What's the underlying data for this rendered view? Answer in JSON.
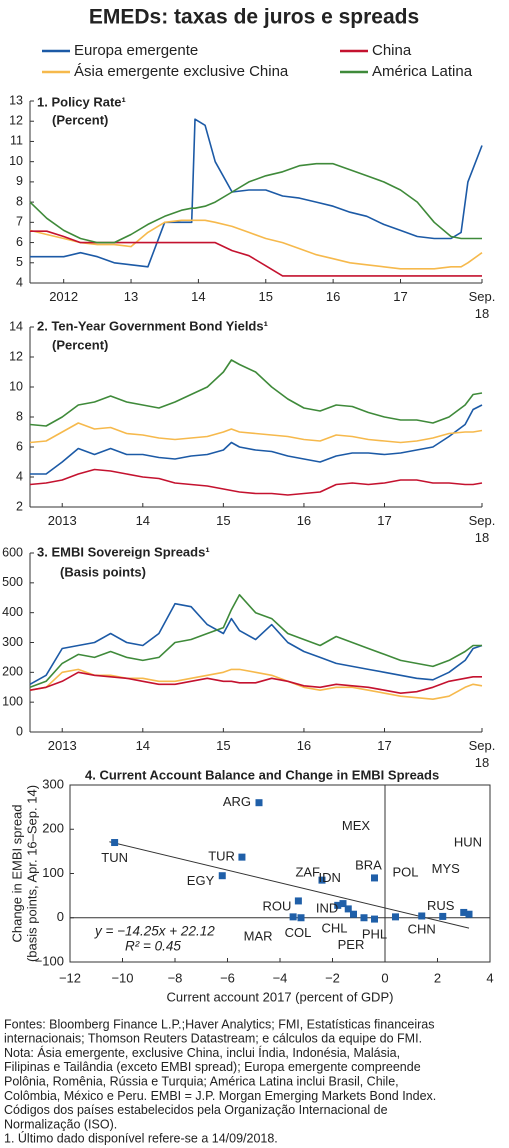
{
  "title": "EMEDs: taxas de juros e spreads",
  "chart_data": [
    {
      "type": "line",
      "title": "1. Policy Rate¹",
      "subtitle": "(Percent)",
      "x": [
        2012.0,
        2012.25,
        2012.5,
        2012.75,
        2013.0,
        2013.25,
        2013.5,
        2013.75,
        2014.0,
        2014.25,
        2014.4,
        2014.45,
        2014.6,
        2014.75,
        2015.0,
        2015.25,
        2015.5,
        2015.75,
        2016.0,
        2016.25,
        2016.5,
        2016.75,
        2017.0,
        2017.25,
        2017.5,
        2017.75,
        2018.0,
        2018.25,
        2018.4,
        2018.5,
        2018.71
      ],
      "xlim": [
        2012.0,
        2018.71
      ],
      "xticks": [
        {
          "value": 2012.5,
          "label": "2012"
        },
        {
          "value": 2013.5,
          "label": "13"
        },
        {
          "value": 2014.5,
          "label": "14"
        },
        {
          "value": 2015.5,
          "label": "15"
        },
        {
          "value": 2016.5,
          "label": "16"
        },
        {
          "value": 2017.5,
          "label": "17"
        },
        {
          "value": 2018.71,
          "label": "Sep.\n18"
        }
      ],
      "ylim": [
        4,
        13
      ],
      "yticks": [
        4,
        5,
        6,
        7,
        8,
        9,
        10,
        11,
        12,
        13
      ],
      "series": [
        {
          "name": "Europa emergente",
          "color": "#1c5aa6",
          "values": [
            5.3,
            5.3,
            5.3,
            5.5,
            5.3,
            5.0,
            4.9,
            4.8,
            7.0,
            7.0,
            7.0,
            12.1,
            11.8,
            10.0,
            8.5,
            8.6,
            8.6,
            8.3,
            8.2,
            8.0,
            7.8,
            7.5,
            7.3,
            6.9,
            6.6,
            6.3,
            6.2,
            6.2,
            6.5,
            9.0,
            10.8
          ]
        },
        {
          "name": "Ásia emergente exclusive China",
          "color": "#f6b94c",
          "values": [
            6.6,
            6.4,
            6.2,
            6.0,
            5.9,
            5.9,
            5.8,
            6.5,
            7.0,
            7.1,
            7.1,
            7.1,
            7.1,
            7.0,
            6.8,
            6.5,
            6.2,
            6.0,
            5.7,
            5.4,
            5.2,
            5.0,
            4.9,
            4.8,
            4.7,
            4.7,
            4.7,
            4.8,
            4.8,
            5.0,
            5.5
          ]
        },
        {
          "name": "China",
          "color": "#c4122f",
          "values": [
            6.56,
            6.56,
            6.3,
            6.0,
            6.0,
            6.0,
            6.0,
            6.0,
            6.0,
            6.0,
            6.0,
            6.0,
            6.0,
            6.0,
            5.6,
            5.35,
            4.85,
            4.35,
            4.35,
            4.35,
            4.35,
            4.35,
            4.35,
            4.35,
            4.35,
            4.35,
            4.35,
            4.35,
            4.35,
            4.35,
            4.35
          ]
        },
        {
          "name": "América Latina",
          "color": "#3f8a3a",
          "values": [
            8.0,
            7.2,
            6.6,
            6.2,
            6.0,
            6.0,
            6.4,
            6.9,
            7.3,
            7.6,
            7.7,
            7.7,
            7.8,
            8.0,
            8.5,
            9.0,
            9.3,
            9.5,
            9.8,
            9.9,
            9.9,
            9.6,
            9.3,
            9.0,
            8.6,
            8.0,
            7.0,
            6.3,
            6.2,
            6.2,
            6.2
          ]
        }
      ]
    },
    {
      "type": "line",
      "title": "2. Ten-Year Government Bond Yields¹",
      "subtitle": "(Percent)",
      "x": [
        2013.1,
        2013.3,
        2013.5,
        2013.7,
        2013.9,
        2014.1,
        2014.3,
        2014.5,
        2014.7,
        2014.9,
        2015.1,
        2015.3,
        2015.5,
        2015.6,
        2015.7,
        2015.9,
        2016.1,
        2016.3,
        2016.5,
        2016.7,
        2016.9,
        2017.1,
        2017.3,
        2017.5,
        2017.7,
        2017.9,
        2018.1,
        2018.3,
        2018.5,
        2018.6,
        2018.71
      ],
      "xlim": [
        2013.1,
        2018.71
      ],
      "xticks": [
        {
          "value": 2013.5,
          "label": "2013"
        },
        {
          "value": 2014.5,
          "label": "14"
        },
        {
          "value": 2015.5,
          "label": "15"
        },
        {
          "value": 2016.5,
          "label": "16"
        },
        {
          "value": 2017.5,
          "label": "17"
        },
        {
          "value": 2018.71,
          "label": "Sep.\n18"
        }
      ],
      "ylim": [
        2,
        14
      ],
      "yticks": [
        2,
        4,
        6,
        8,
        10,
        12,
        14
      ],
      "series": [
        {
          "color": "#1c5aa6",
          "values": [
            4.2,
            4.2,
            5.0,
            5.9,
            5.5,
            5.9,
            5.5,
            5.5,
            5.3,
            5.2,
            5.4,
            5.5,
            5.8,
            6.3,
            6.0,
            5.8,
            5.7,
            5.4,
            5.2,
            5.0,
            5.4,
            5.6,
            5.6,
            5.5,
            5.6,
            5.8,
            6.0,
            6.7,
            7.5,
            8.5,
            8.8
          ]
        },
        {
          "color": "#f6b94c",
          "values": [
            6.3,
            6.4,
            7.0,
            7.6,
            7.2,
            7.3,
            6.9,
            6.8,
            6.6,
            6.5,
            6.6,
            6.7,
            7.0,
            7.2,
            7.0,
            6.9,
            6.8,
            6.7,
            6.5,
            6.4,
            6.8,
            6.7,
            6.5,
            6.4,
            6.3,
            6.4,
            6.6,
            6.9,
            7.0,
            7.0,
            7.1
          ]
        },
        {
          "color": "#c4122f",
          "values": [
            3.5,
            3.6,
            3.8,
            4.2,
            4.5,
            4.4,
            4.2,
            4.0,
            3.9,
            3.6,
            3.5,
            3.4,
            3.2,
            3.1,
            3.0,
            2.9,
            2.9,
            2.8,
            2.9,
            3.0,
            3.5,
            3.6,
            3.5,
            3.6,
            3.8,
            3.8,
            3.6,
            3.6,
            3.5,
            3.5,
            3.6
          ]
        },
        {
          "color": "#3f8a3a",
          "values": [
            7.5,
            7.4,
            8.0,
            8.8,
            9.0,
            9.4,
            9.0,
            8.8,
            8.6,
            9.0,
            9.5,
            10.0,
            11.0,
            11.8,
            11.5,
            11.0,
            10.0,
            9.2,
            8.6,
            8.4,
            8.8,
            8.7,
            8.3,
            8.0,
            7.8,
            7.8,
            7.6,
            8.0,
            8.8,
            9.5,
            9.6
          ]
        }
      ]
    },
    {
      "type": "line",
      "title": "3. EMBI Sovereign Spreads¹",
      "subtitle": "(Basis points)",
      "x": [
        2013.1,
        2013.3,
        2013.5,
        2013.7,
        2013.9,
        2014.1,
        2014.3,
        2014.5,
        2014.7,
        2014.9,
        2015.1,
        2015.3,
        2015.5,
        2015.6,
        2015.7,
        2015.9,
        2016.1,
        2016.3,
        2016.5,
        2016.7,
        2016.9,
        2017.1,
        2017.3,
        2017.5,
        2017.7,
        2017.9,
        2018.1,
        2018.3,
        2018.5,
        2018.6,
        2018.71
      ],
      "xlim": [
        2013.1,
        2018.71
      ],
      "xticks": [
        {
          "value": 2013.5,
          "label": "2013"
        },
        {
          "value": 2014.5,
          "label": "14"
        },
        {
          "value": 2015.5,
          "label": "15"
        },
        {
          "value": 2016.5,
          "label": "16"
        },
        {
          "value": 2017.5,
          "label": "17"
        },
        {
          "value": 2018.71,
          "label": "Sep.\n18"
        }
      ],
      "ylim": [
        0,
        600
      ],
      "yticks": [
        0,
        100,
        200,
        300,
        400,
        500,
        600
      ],
      "series": [
        {
          "color": "#1c5aa6",
          "values": [
            160,
            190,
            280,
            290,
            300,
            330,
            300,
            290,
            330,
            430,
            420,
            360,
            330,
            380,
            340,
            310,
            360,
            300,
            270,
            250,
            230,
            220,
            210,
            200,
            190,
            180,
            175,
            200,
            240,
            280,
            290
          ]
        },
        {
          "color": "#f6b94c",
          "values": [
            140,
            150,
            200,
            210,
            190,
            190,
            180,
            180,
            170,
            170,
            180,
            190,
            200,
            210,
            210,
            200,
            190,
            170,
            150,
            140,
            150,
            150,
            140,
            130,
            120,
            115,
            110,
            120,
            150,
            160,
            155
          ]
        },
        {
          "color": "#c4122f",
          "values": [
            140,
            150,
            170,
            200,
            190,
            185,
            180,
            170,
            160,
            160,
            170,
            180,
            170,
            170,
            165,
            165,
            180,
            170,
            155,
            150,
            160,
            155,
            150,
            140,
            130,
            135,
            150,
            170,
            180,
            185,
            185
          ]
        },
        {
          "color": "#3f8a3a",
          "values": [
            150,
            170,
            230,
            260,
            250,
            270,
            250,
            240,
            250,
            300,
            310,
            330,
            350,
            410,
            460,
            400,
            380,
            330,
            310,
            290,
            320,
            300,
            280,
            260,
            240,
            230,
            220,
            240,
            270,
            290,
            290
          ]
        }
      ]
    },
    {
      "type": "scatter",
      "title": "4. Current Account Balance and Change in EMBI Spreads",
      "xlabel": "Current account 2017 (percent of GDP)",
      "ylabel": [
        "Change in EMBI spread",
        "(basis points, Apr. 16–Sep. 14)"
      ],
      "labels": [
        "TUN",
        "ARG",
        "TUR",
        "EGY",
        "ZAF",
        "BRA",
        "IDN",
        "MEX",
        "IND",
        "CHL",
        "PER",
        "PHL",
        "ROU",
        "MAR",
        "COL",
        "POL",
        "CHN",
        "RUS",
        "MYS",
        "HUN"
      ],
      "x": [
        -10.3,
        -4.8,
        -5.45,
        -6.2,
        -2.4,
        -0.4,
        -1.8,
        -1.6,
        -1.4,
        -1.2,
        -0.8,
        -0.4,
        -3.3,
        -3.5,
        -3.2,
        0.4,
        1.4,
        2.2,
        3.0,
        3.2
      ],
      "y": [
        170,
        260,
        137,
        95,
        85,
        90,
        28,
        32,
        20,
        8,
        0,
        -3,
        38,
        2,
        0,
        2,
        4,
        3,
        12,
        8
      ],
      "color": "#1f5fa8",
      "xlim": [
        -12,
        4
      ],
      "ylim": [
        -100,
        300
      ],
      "xticks": [
        {
          "value": -12,
          "label": "−12"
        },
        {
          "value": -10,
          "label": "−10"
        },
        {
          "value": -8,
          "label": "−8"
        },
        {
          "value": -6,
          "label": "−6"
        },
        {
          "value": -4,
          "label": "−4"
        },
        {
          "value": -2,
          "label": "−2"
        },
        0,
        2,
        4
      ],
      "yticks": [
        {
          "value": -100,
          "label": "−100"
        },
        0,
        100,
        200,
        300
      ],
      "trend": {
        "slope": -14.25,
        "intercept": 22.12,
        "x_range": [
          -10.5,
          3.2
        ]
      },
      "annotations": [
        "y = −14.25x + 22.12",
        "R² = 0.45"
      ]
    }
  ],
  "notes": [
    "Fontes: Bloomberg Finance L.P.;Haver Analytics; FMI, Estatísticas financeiras",
    "internacionais; Thomson Reuters Datastream; e cálculos da equipe do FMI.",
    "Nota: Ásia emergente, exclusive China, inclui Índia, Indonésia, Malásia,",
    "Filipinas e Tailândia (exceto EMBI spread); Europa emergente compreende",
    "Polônia, Romênia, Rússia e Turquia; América Latina inclui Brasil, Chile,",
    "Colômbia, México e Peru. EMBI = J.P. Morgan Emerging Markets Bond Index.",
    "Códigos dos países estabelecidos pela Organização Internacional de",
    "Normalização (ISO).",
    "1. Último dado disponível refere-se a 14/09/2018."
  ]
}
